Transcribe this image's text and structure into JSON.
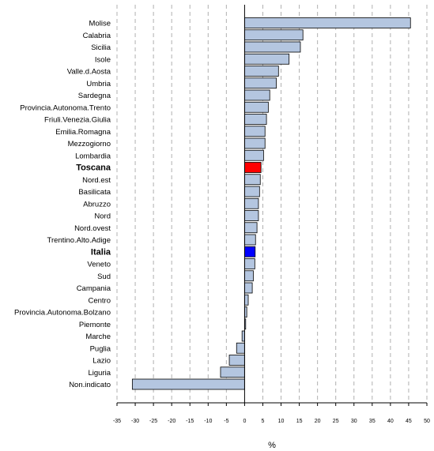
{
  "chart_data": {
    "type": "bar",
    "orientation": "horizontal",
    "xlabel": "%",
    "ylabel": "",
    "xlim": [
      -35,
      50
    ],
    "xticks": [
      -35,
      -30,
      -25,
      -20,
      -15,
      -10,
      -5,
      0,
      5,
      10,
      15,
      20,
      25,
      30,
      35,
      40,
      45,
      50
    ],
    "grid": "vertical dashed",
    "categories": [
      "Molise",
      "Calabria",
      "Sicilia",
      "Isole",
      "Valle.d.Aosta",
      "Umbria",
      "Sardegna",
      "Provincia.Autonoma.Trento",
      "Friuli.Venezia.Giulia",
      "Emilia.Romagna",
      "Mezzogiorno",
      "Lombardia",
      "Toscana",
      "Nord.est",
      "Basilicata",
      "Abruzzo",
      "Nord",
      "Nord.ovest",
      "Trentino.Alto.Adige",
      "Italia",
      "Veneto",
      "Sud",
      "Campania",
      "Centro",
      "Provincia.Autonoma.Bolzano",
      "Piemonte",
      "Marche",
      "Puglia",
      "Lazio",
      "Liguria",
      "Non.indicato"
    ],
    "values": [
      45.5,
      16.0,
      15.3,
      12.2,
      9.3,
      8.7,
      6.9,
      6.5,
      6.0,
      5.6,
      5.6,
      5.2,
      4.5,
      4.3,
      4.1,
      3.8,
      3.8,
      3.4,
      3.0,
      2.9,
      2.8,
      2.4,
      2.1,
      1.0,
      0.6,
      0.3,
      -0.7,
      -2.2,
      -4.2,
      -6.6,
      -30.8
    ],
    "highlights": {
      "Toscana": "#ff0000",
      "Italia": "#0000ff"
    },
    "bar_color": "#b4c6e0",
    "bar_edge_color": "#000000"
  }
}
